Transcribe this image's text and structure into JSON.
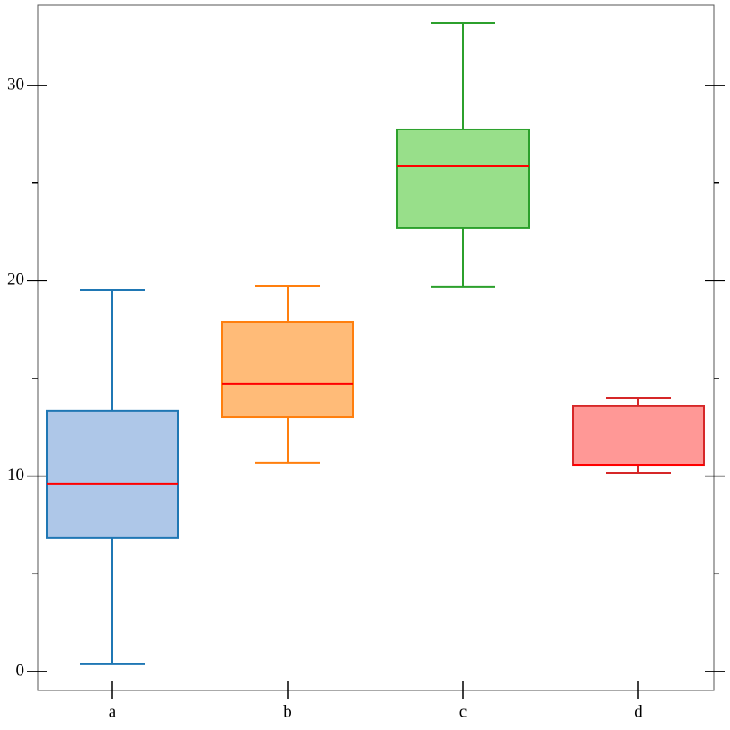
{
  "chart_data": {
    "type": "box",
    "categories": [
      "a",
      "b",
      "c",
      "d"
    ],
    "boxes": [
      {
        "whislo": 0.37,
        "q1": 6.86,
        "med": 9.62,
        "q3": 13.35,
        "whishi": 19.51,
        "color": "#1f77b4",
        "fill": "#aec7e8"
      },
      {
        "whislo": 10.68,
        "q1": 13.02,
        "med": 14.73,
        "q3": 17.9,
        "whishi": 19.74,
        "color": "#ff7f0e",
        "fill": "#ffbb78"
      },
      {
        "whislo": 19.7,
        "q1": 22.69,
        "med": 25.86,
        "q3": 27.75,
        "whishi": 33.18,
        "color": "#2ca02c",
        "fill": "#98df8a"
      },
      {
        "whislo": 10.17,
        "q1": 10.58,
        "med": 10.58,
        "q3": 13.58,
        "whishi": 13.99,
        "color": "#d62728",
        "fill": "#ff9896"
      }
    ],
    "median_color": "#ff0000",
    "ylim": [
      -0.97,
      34.1
    ],
    "yticks": [
      0,
      10,
      20,
      30
    ],
    "yminorticks": [
      5,
      15,
      25
    ]
  }
}
